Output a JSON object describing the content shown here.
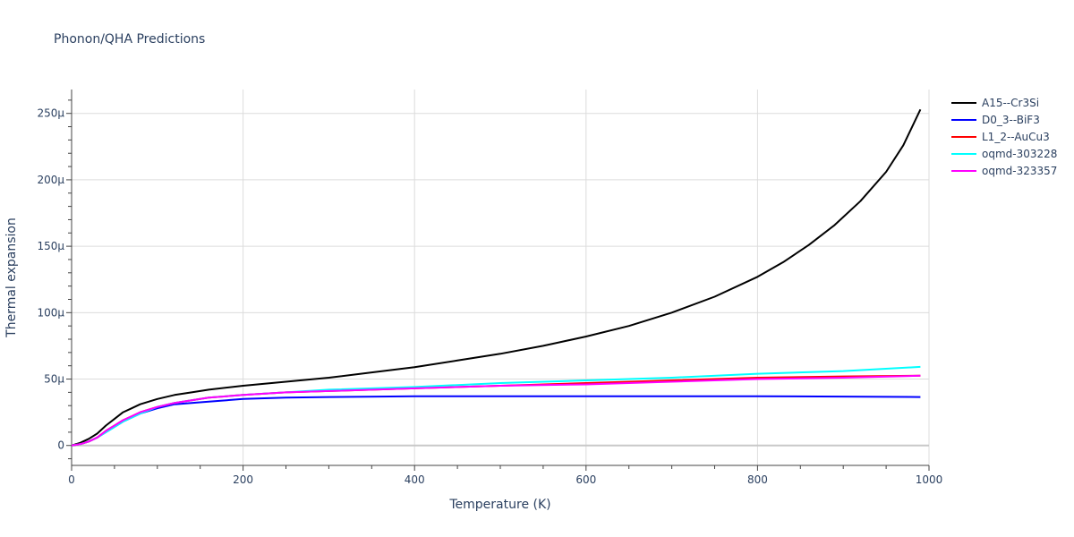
{
  "chart_data": {
    "type": "line",
    "title": "Phonon/QHA Predictions",
    "xlabel": "Temperature (K)",
    "ylabel": "Thermal expansion",
    "xlim": [
      0,
      1000
    ],
    "ylim": [
      -1.5e-05,
      0.000268
    ],
    "grid": true,
    "legend_position": "top-right",
    "x_ticks": [
      {
        "value": 0,
        "label": "0"
      },
      {
        "value": 200,
        "label": "200"
      },
      {
        "value": 400,
        "label": "400"
      },
      {
        "value": 600,
        "label": "600"
      },
      {
        "value": 800,
        "label": "800"
      },
      {
        "value": 1000,
        "label": "1000"
      }
    ],
    "y_ticks": [
      {
        "value": 0,
        "label": "0"
      },
      {
        "value": 5e-05,
        "label": "50μ"
      },
      {
        "value": 0.0001,
        "label": "100μ"
      },
      {
        "value": 0.00015,
        "label": "150μ"
      },
      {
        "value": 0.0002,
        "label": "200μ"
      },
      {
        "value": 0.00025,
        "label": "250μ"
      }
    ],
    "series": [
      {
        "name": "A15--Cr3Si",
        "color": "#000000",
        "x": [
          0,
          10,
          20,
          30,
          40,
          50,
          60,
          70,
          80,
          100,
          120,
          140,
          160,
          200,
          250,
          300,
          350,
          400,
          450,
          500,
          550,
          600,
          650,
          700,
          750,
          800,
          830,
          860,
          890,
          920,
          950,
          970,
          990
        ],
        "y": [
          0,
          2e-06,
          5e-06,
          9e-06,
          1.5e-05,
          2e-05,
          2.5e-05,
          2.8e-05,
          3.1e-05,
          3.5e-05,
          3.8e-05,
          4e-05,
          4.2e-05,
          4.5e-05,
          4.8e-05,
          5.1e-05,
          5.5e-05,
          5.9e-05,
          6.4e-05,
          6.9e-05,
          7.5e-05,
          8.2e-05,
          9e-05,
          0.0001,
          0.000112,
          0.000127,
          0.000138,
          0.000151,
          0.000166,
          0.000184,
          0.000206,
          0.000226,
          0.000253
        ]
      },
      {
        "name": "D0_3--BiF3",
        "color": "#0000ff",
        "x": [
          0,
          10,
          20,
          30,
          40,
          50,
          60,
          70,
          80,
          100,
          120,
          140,
          160,
          200,
          250,
          300,
          400,
          500,
          600,
          700,
          800,
          900,
          990
        ],
        "y": [
          0,
          1e-06,
          3e-06,
          6e-06,
          1e-05,
          1.4e-05,
          1.8e-05,
          2.1e-05,
          2.4e-05,
          2.8e-05,
          3.1e-05,
          3.2e-05,
          3.3e-05,
          3.5e-05,
          3.6e-05,
          3.65e-05,
          3.7e-05,
          3.7e-05,
          3.7e-05,
          3.7e-05,
          3.7e-05,
          3.68e-05,
          3.65e-05
        ]
      },
      {
        "name": "L1_2--AuCu3",
        "color": "#ff0000",
        "x": [
          0,
          10,
          20,
          30,
          40,
          50,
          60,
          70,
          80,
          100,
          120,
          140,
          160,
          200,
          250,
          300,
          400,
          500,
          600,
          700,
          800,
          900,
          990
        ],
        "y": [
          0,
          1e-06,
          3e-06,
          6e-06,
          1.1e-05,
          1.5e-05,
          1.9e-05,
          2.2e-05,
          2.5e-05,
          2.9e-05,
          3.2e-05,
          3.4e-05,
          3.6e-05,
          3.8e-05,
          4e-05,
          4.1e-05,
          4.3e-05,
          4.5e-05,
          4.7e-05,
          4.9e-05,
          5.1e-05,
          5.2e-05,
          5.25e-05
        ]
      },
      {
        "name": "oqmd-303228",
        "color": "#00ffff",
        "x": [
          0,
          10,
          20,
          30,
          40,
          50,
          60,
          70,
          80,
          100,
          120,
          140,
          160,
          200,
          250,
          300,
          400,
          500,
          600,
          700,
          800,
          900,
          990
        ],
        "y": [
          0,
          1e-06,
          3e-06,
          6e-06,
          1e-05,
          1.4e-05,
          1.8e-05,
          2.1e-05,
          2.4e-05,
          2.9e-05,
          3.2e-05,
          3.4e-05,
          3.6e-05,
          3.8e-05,
          4e-05,
          4.2e-05,
          4.4e-05,
          4.7e-05,
          4.9e-05,
          5.1e-05,
          5.4e-05,
          5.6e-05,
          5.92e-05
        ]
      },
      {
        "name": "oqmd-323357",
        "color": "#ff00ff",
        "x": [
          0,
          10,
          20,
          30,
          40,
          50,
          60,
          70,
          80,
          100,
          120,
          140,
          160,
          200,
          250,
          300,
          400,
          500,
          600,
          700,
          800,
          900,
          990
        ],
        "y": [
          0,
          1e-06,
          3e-06,
          6e-06,
          1.1e-05,
          1.5e-05,
          1.9e-05,
          2.2e-05,
          2.5e-05,
          2.9e-05,
          3.2e-05,
          3.4e-05,
          3.6e-05,
          3.8e-05,
          4e-05,
          4.1e-05,
          4.3e-05,
          4.5e-05,
          4.6e-05,
          4.8e-05,
          5e-05,
          5.1e-05,
          5.25e-05
        ]
      }
    ]
  }
}
